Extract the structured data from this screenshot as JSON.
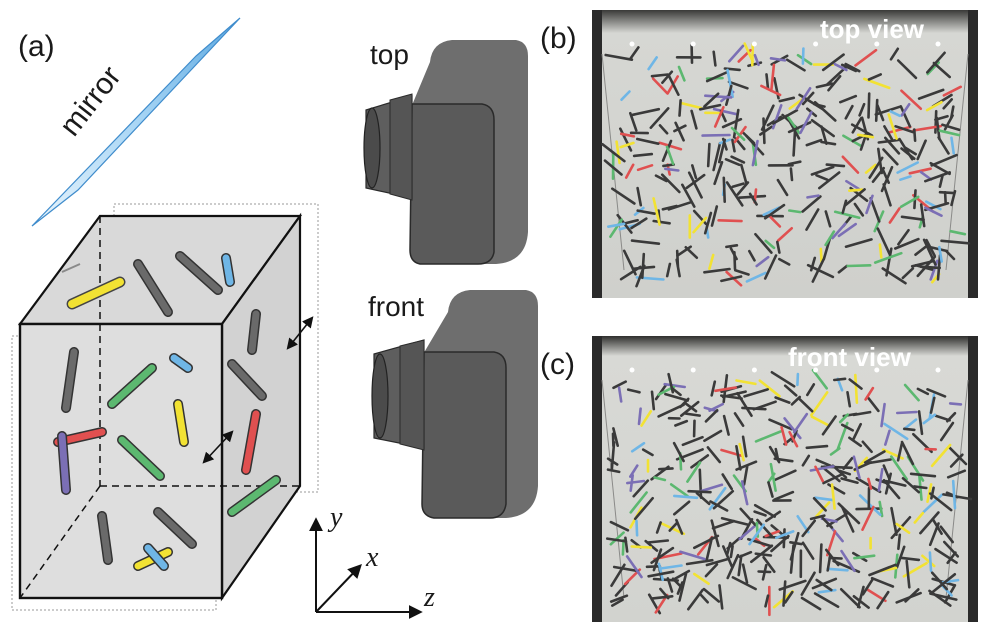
{
  "panel_a": {
    "label": "(a)",
    "mirror_label": "mirror",
    "camera_top_label": "top",
    "camera_front_label": "front",
    "axes": {
      "y": "y",
      "x": "x",
      "z": "z"
    }
  },
  "panel_b": {
    "label": "(b)",
    "title": "top view"
  },
  "panel_c": {
    "label": "(c)",
    "title": "front view"
  },
  "colors": {
    "box_face": "#dcdcdc",
    "box_edge": "#111111",
    "camera_body": "#6b6b6b",
    "camera_dark": "#4f4f4f",
    "mirror_fill": "#a9d6f5",
    "rod_dark": "#3a3a3a",
    "rod_yellow": "#f2e233",
    "rod_blue": "#6fb6e6",
    "rod_green": "#5cb870",
    "rod_red": "#e05050",
    "rod_purple": "#7b6fb5",
    "photo_bg": "#d8d8d4"
  }
}
